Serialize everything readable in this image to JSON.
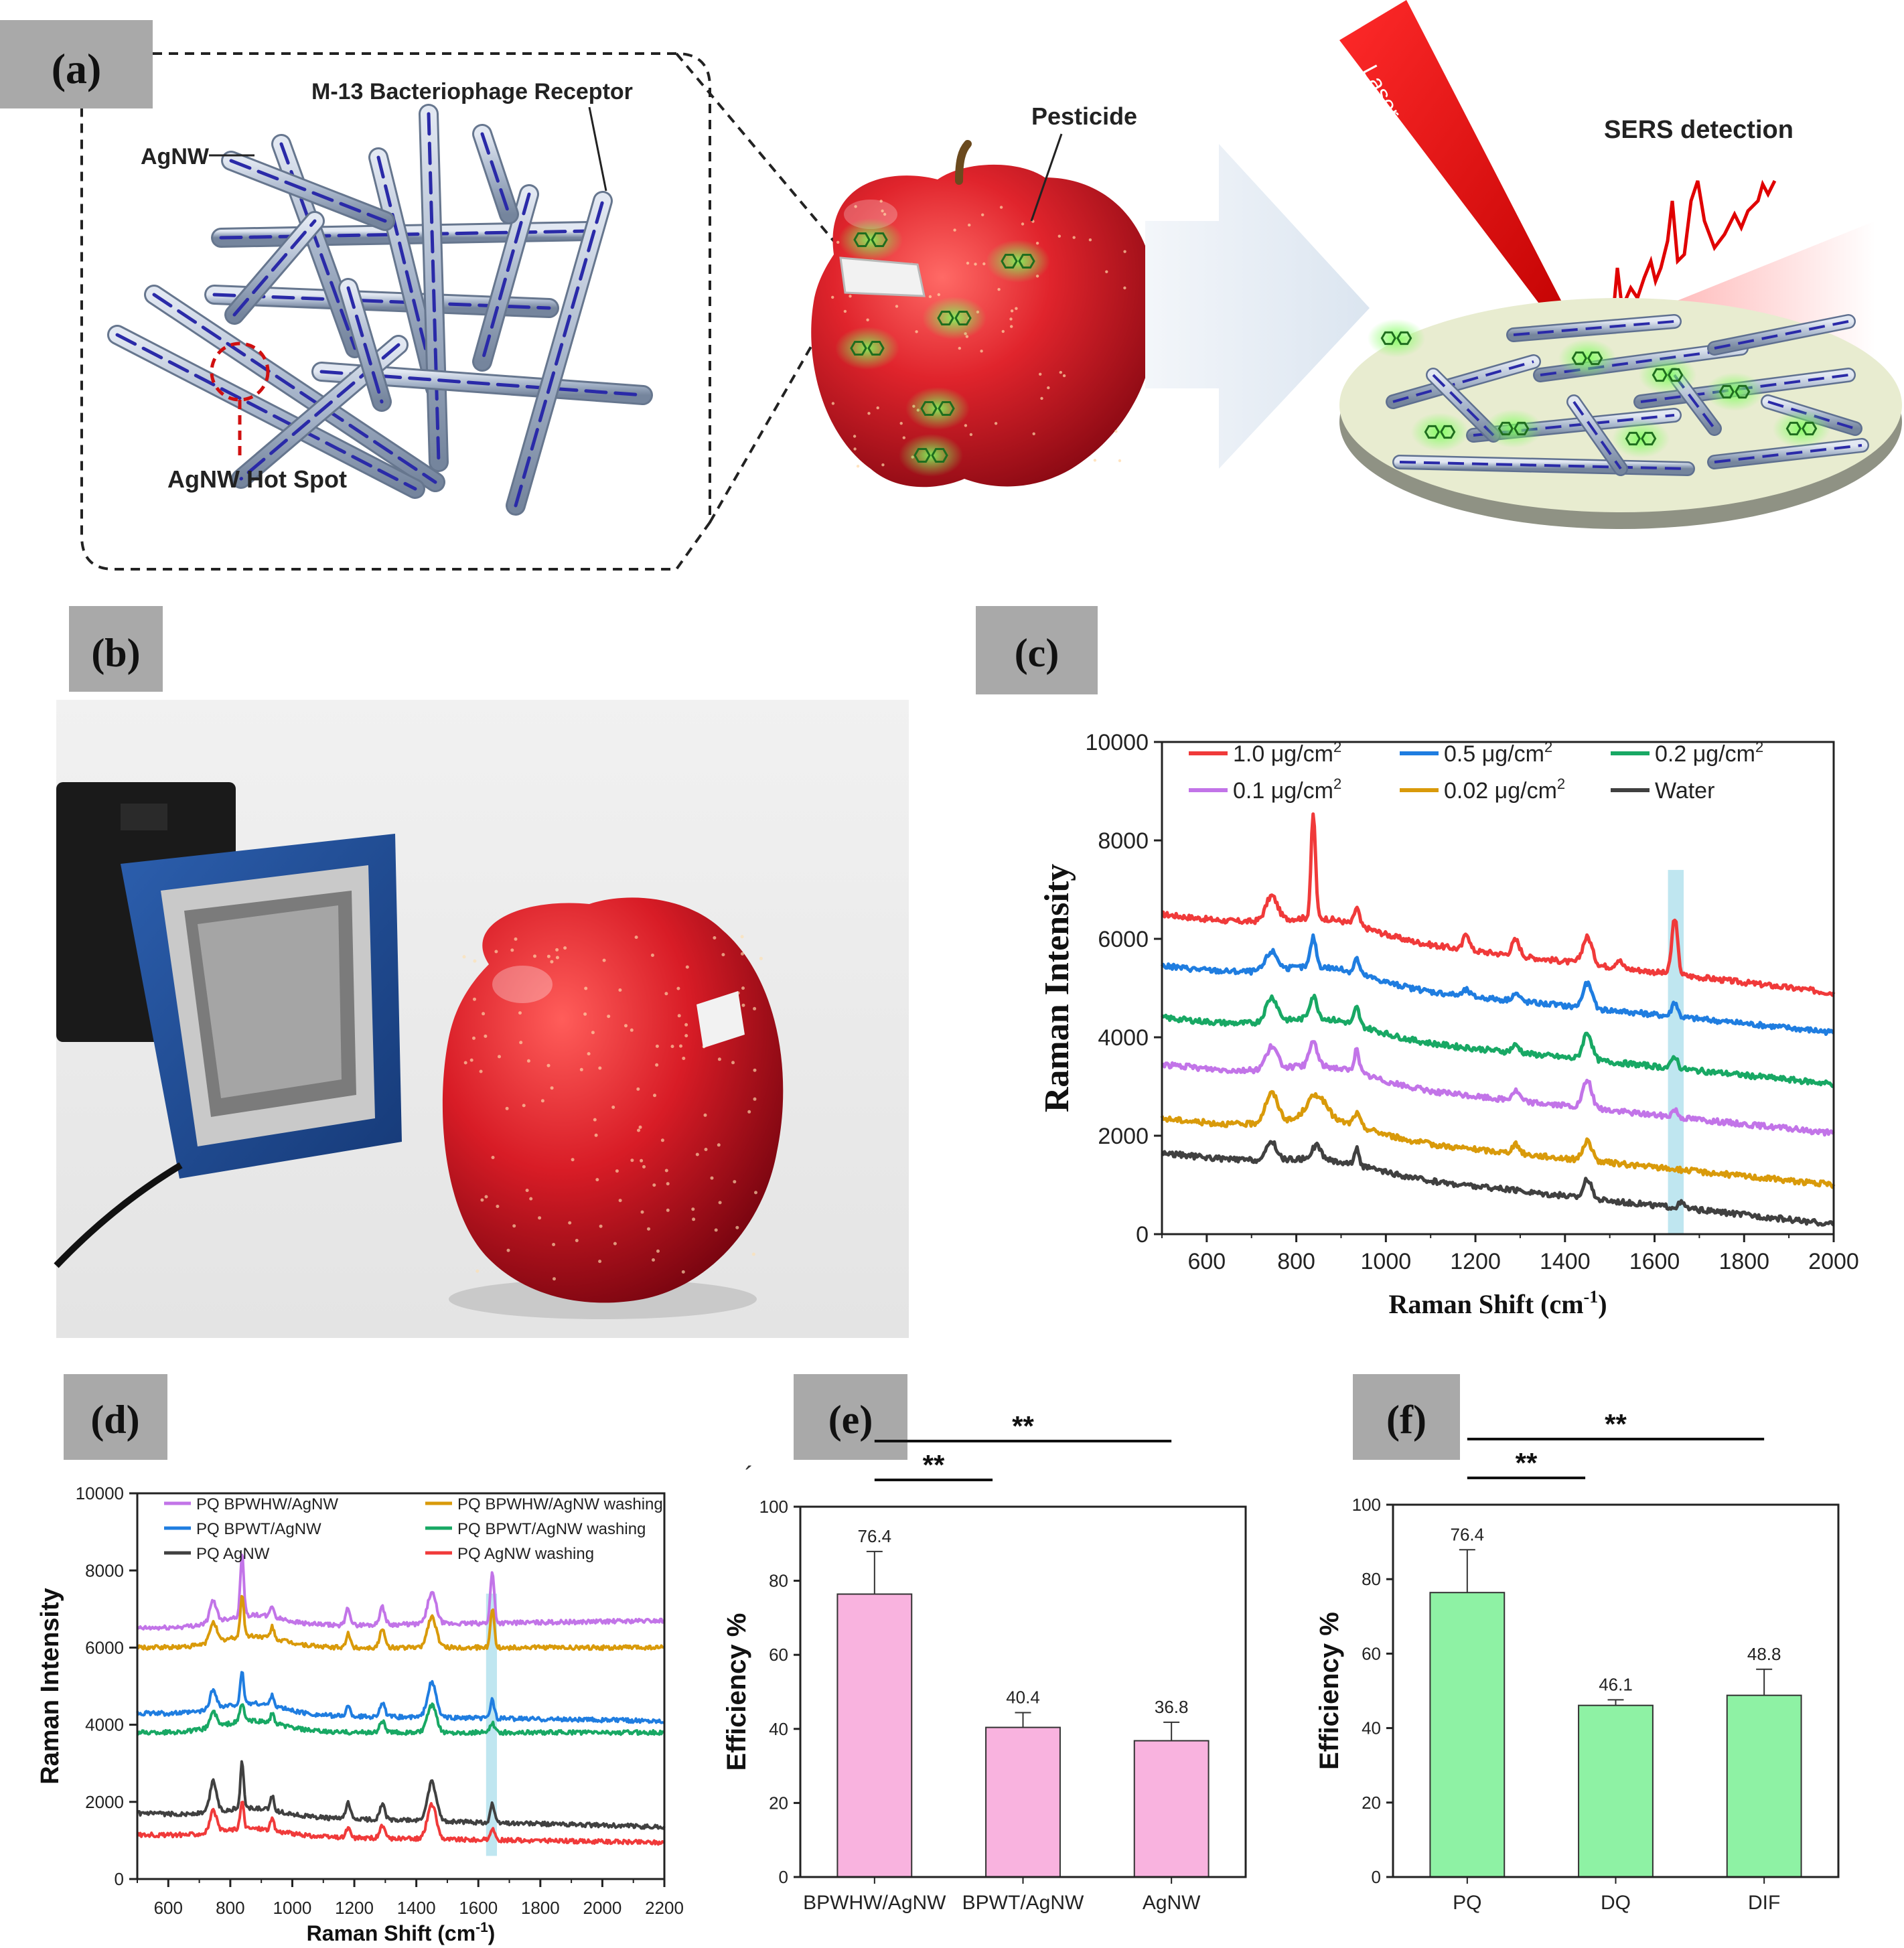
{
  "panels": {
    "a": {
      "label": "(a)",
      "receptor": "M-13 Bacteriophage Receptor",
      "agnw": "AgNW",
      "hotspot": "AgNW Hot Spot",
      "pesticide": "Pesticide",
      "laser": "Laser",
      "sers": "SERS detection"
    },
    "b": {
      "label": "(b)"
    },
    "c": {
      "label": "(c)"
    },
    "d": {
      "label": "(d)"
    },
    "e": {
      "label": "(e)",
      "stray_mark": "´"
    },
    "f": {
      "label": "(f)"
    }
  },
  "colors": {
    "label_bg": "#a9a9a9",
    "red": "#f03a3a",
    "blue": "#1f7de0",
    "green": "#18a864",
    "purple": "#c274e8",
    "orange": "#d99a0a",
    "black": "#404040",
    "pink_bar": "#f9b3df",
    "green_bar": "#8ef2a4",
    "highlight": "#bfe6f0"
  },
  "chart_data": [
    {
      "id": "c",
      "type": "line",
      "xlabel_main": "Raman Shift (cm",
      "xlabel_sup": "-1",
      "xlabel_end": ")",
      "ylabel": "Raman Intensity",
      "xlim": [
        500,
        2000
      ],
      "ylim": [
        0,
        10000
      ],
      "xticks": [
        "600",
        "800",
        "1000",
        "1200",
        "1400",
        "1600",
        "1800",
        "2000"
      ],
      "yticks": [
        "0",
        "2000",
        "4000",
        "6000",
        "8000",
        "10000"
      ],
      "highlight_band": [
        1630,
        1665
      ],
      "series": [
        {
          "name": "1.0 μg/cm",
          "sup": "2",
          "color": "#f03a3a",
          "start": 6500,
          "end": 4900,
          "peaks": [
            [
              745,
              500,
              18
            ],
            [
              838,
              2100,
              7
            ],
            [
              935,
              350,
              8
            ],
            [
              1180,
              350,
              9
            ],
            [
              1290,
              320,
              12
            ],
            [
              1450,
              550,
              15
            ],
            [
              1520,
              160,
              10
            ],
            [
              1645,
              1150,
              9
            ]
          ]
        },
        {
          "name": "0.5 μg/cm",
          "sup": "2",
          "color": "#1f7de0",
          "start": 5450,
          "end": 4100,
          "peaks": [
            [
              745,
              380,
              18
            ],
            [
              838,
              600,
              9
            ],
            [
              935,
              300,
              8
            ],
            [
              1180,
              120,
              10
            ],
            [
              1290,
              150,
              12
            ],
            [
              1450,
              500,
              14
            ],
            [
              1645,
              300,
              9
            ]
          ]
        },
        {
          "name": "0.2 μg/cm",
          "sup": "2",
          "color": "#18a864",
          "start": 4400,
          "end": 3050,
          "peaks": [
            [
              745,
              500,
              18
            ],
            [
              838,
              450,
              12
            ],
            [
              935,
              350,
              8
            ],
            [
              1290,
              150,
              12
            ],
            [
              1450,
              550,
              14
            ],
            [
              1645,
              250,
              9
            ]
          ]
        },
        {
          "name": "0.1 μg/cm",
          "sup": "2",
          "color": "#c274e8",
          "start": 3450,
          "end": 2050,
          "peaks": [
            [
              745,
              450,
              18
            ],
            [
              838,
              500,
              12
            ],
            [
              935,
              450,
              8
            ],
            [
              1290,
              200,
              12
            ],
            [
              1450,
              550,
              14
            ],
            [
              1645,
              150,
              9
            ]
          ]
        },
        {
          "name": "0.02 μg/cm",
          "sup": "2",
          "color": "#d99a0a",
          "start": 2350,
          "end": 1000,
          "peaks": [
            [
              745,
              600,
              20
            ],
            [
              845,
              500,
              30
            ],
            [
              935,
              250,
              10
            ],
            [
              1290,
              180,
              12
            ],
            [
              1450,
              400,
              14
            ]
          ]
        },
        {
          "name": "Water",
          "sup": "",
          "color": "#404040",
          "start": 1650,
          "end": 200,
          "peaks": [
            [
              745,
              380,
              15
            ],
            [
              845,
              280,
              15
            ],
            [
              935,
              330,
              8
            ],
            [
              1450,
              400,
              12
            ],
            [
              1660,
              100,
              10
            ]
          ]
        }
      ]
    },
    {
      "id": "d",
      "type": "line",
      "xlabel_main": "Raman Shift (cm",
      "xlabel_sup": "-1",
      "xlabel_end": ")",
      "ylabel": "Raman Intensity",
      "xlim": [
        500,
        2200
      ],
      "ylim": [
        0,
        10000
      ],
      "xticks": [
        "600",
        "800",
        "1000",
        "1200",
        "1400",
        "1600",
        "1800",
        "2000",
        "2200"
      ],
      "yticks": [
        "0",
        "2000",
        "4000",
        "6000",
        "8000",
        "10000"
      ],
      "highlight_band": [
        1625,
        1660
      ],
      "series": [
        {
          "name": "PQ BPWHW/AgNW",
          "color": "#c274e8",
          "start": 6500,
          "end": 6700,
          "peaks": [
            [
              745,
              550,
              15
            ],
            [
              838,
              1600,
              8
            ],
            [
              935,
              300,
              8
            ],
            [
              1180,
              450,
              10
            ],
            [
              1290,
              450,
              12
            ],
            [
              1450,
              800,
              20
            ],
            [
              1645,
              1300,
              9
            ]
          ]
        },
        {
          "name": "PQ BPWHW/AgNW washing",
          "color": "#d99a0a",
          "start": 6000,
          "end": 6000,
          "peaks": [
            [
              745,
              550,
              15
            ],
            [
              838,
              1100,
              8
            ],
            [
              935,
              300,
              8
            ],
            [
              1180,
              350,
              10
            ],
            [
              1290,
              450,
              12
            ],
            [
              1450,
              800,
              20
            ],
            [
              1645,
              1000,
              9
            ]
          ]
        },
        {
          "name": "PQ BPWT/AgNW",
          "color": "#1f7de0",
          "start": 4300,
          "end": 4100,
          "peaks": [
            [
              745,
              500,
              15
            ],
            [
              838,
              800,
              8
            ],
            [
              935,
              300,
              8
            ],
            [
              1180,
              250,
              10
            ],
            [
              1290,
              350,
              12
            ],
            [
              1450,
              900,
              20
            ],
            [
              1645,
              500,
              9
            ]
          ]
        },
        {
          "name": "PQ BPWT/AgNW washing",
          "color": "#18a864",
          "start": 3800,
          "end": 3800,
          "peaks": [
            [
              745,
              400,
              15
            ],
            [
              838,
              450,
              10
            ],
            [
              935,
              250,
              8
            ],
            [
              1290,
              300,
              12
            ],
            [
              1450,
              700,
              20
            ],
            [
              1645,
              250,
              9
            ]
          ]
        },
        {
          "name": "PQ AgNW",
          "color": "#404040",
          "start": 1700,
          "end": 1350,
          "peaks": [
            [
              745,
              800,
              15
            ],
            [
              838,
              1200,
              8
            ],
            [
              935,
              400,
              8
            ],
            [
              1180,
              400,
              10
            ],
            [
              1290,
              400,
              12
            ],
            [
              1450,
              1000,
              20
            ],
            [
              1645,
              500,
              9
            ]
          ]
        },
        {
          "name": "PQ AgNW washing",
          "color": "#f03a3a",
          "start": 1150,
          "end": 950,
          "peaks": [
            [
              745,
              550,
              15
            ],
            [
              838,
              700,
              8
            ],
            [
              935,
              300,
              8
            ],
            [
              1180,
              250,
              10
            ],
            [
              1290,
              300,
              12
            ],
            [
              1450,
              900,
              20
            ],
            [
              1645,
              300,
              9
            ]
          ]
        }
      ]
    },
    {
      "id": "e",
      "type": "bar",
      "ylabel": "Efficiency %",
      "categories": [
        "BPWHW/AgNW",
        "BPWT/AgNW",
        "AgNW"
      ],
      "values": [
        76.4,
        40.4,
        36.8
      ],
      "value_labels": [
        "76.4",
        "40.4",
        "36.8"
      ],
      "errors": [
        11.5,
        4,
        5
      ],
      "ylim": [
        0,
        100
      ],
      "yticks": [
        "0",
        "20",
        "40",
        "60",
        "80",
        "100"
      ],
      "bar_color": "#f9b3df",
      "significance": [
        {
          "from": 0,
          "to": 1,
          "label": "**"
        },
        {
          "from": 0,
          "to": 2,
          "label": "**"
        }
      ]
    },
    {
      "id": "f",
      "type": "bar",
      "ylabel": "Efficiency %",
      "categories": [
        "PQ",
        "DQ",
        "DIF"
      ],
      "values": [
        76.4,
        46.1,
        48.8
      ],
      "value_labels": [
        "76.4",
        "46.1",
        "48.8"
      ],
      "errors": [
        11.5,
        1.5,
        7
      ],
      "ylim": [
        0,
        100
      ],
      "yticks": [
        "0",
        "20",
        "40",
        "60",
        "80",
        "100"
      ],
      "bar_color": "#8ef2a4",
      "significance": [
        {
          "from": 0,
          "to": 1,
          "label": "**"
        },
        {
          "from": 0,
          "to": 2,
          "label": "**"
        }
      ]
    }
  ]
}
